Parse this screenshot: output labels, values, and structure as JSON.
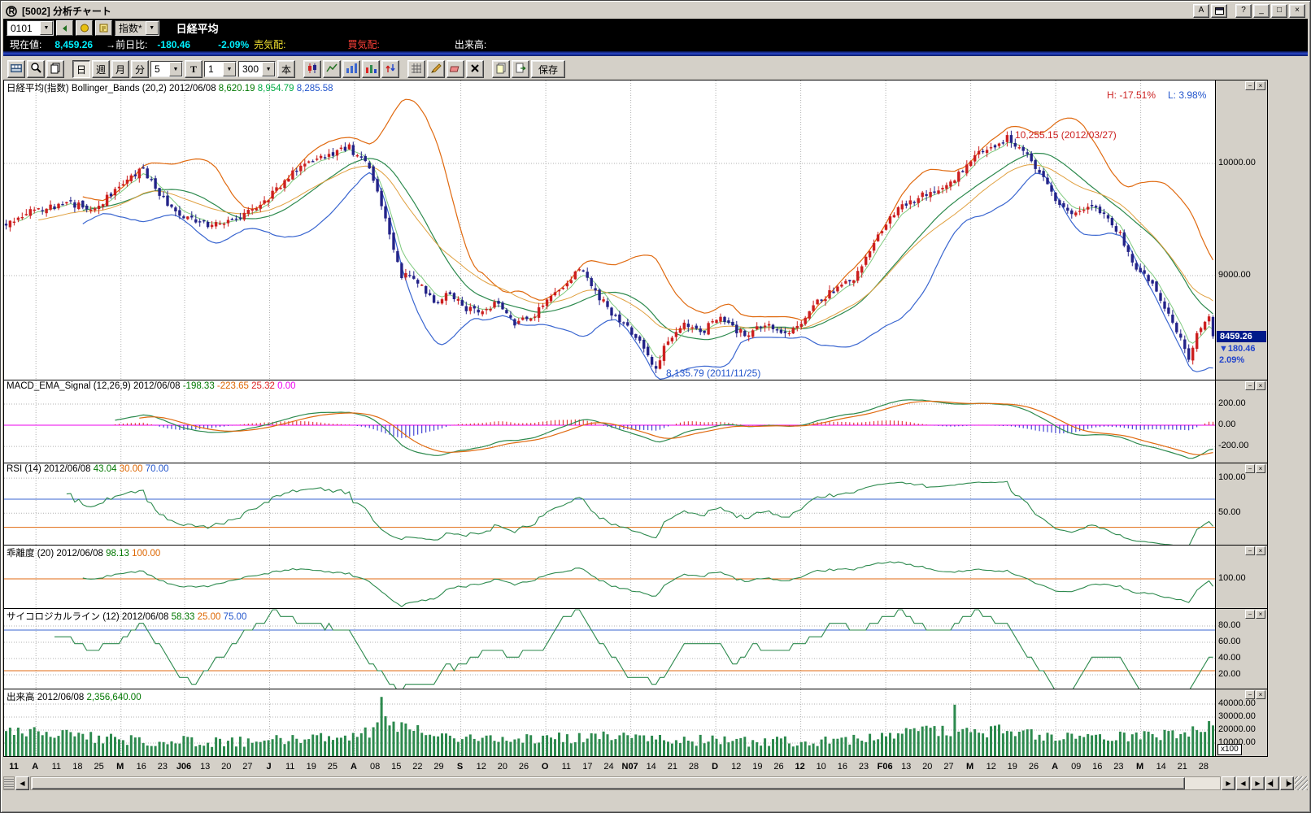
{
  "window": {
    "title": "[5002] 分析チャート",
    "buttons": {
      "a": "A",
      "help": "?",
      "minimize": "_",
      "restore": "□",
      "close": "×"
    }
  },
  "toolbar1": {
    "code": "0101",
    "type": "指数*",
    "instrument": "日経平均"
  },
  "quote": {
    "current_label": "現在値:",
    "current_value": "8,459.26",
    "change_label": "→前日比:",
    "change_value": "-180.46",
    "change_pct": "-2.09%",
    "ask_label": "売気配:",
    "bid_label": "買気配:",
    "volume_label": "出来高:"
  },
  "toolbar2": {
    "periods": [
      "日",
      "週",
      "月",
      "分"
    ],
    "active_period": "日",
    "minute_value": "5",
    "t_label": "T",
    "interval_value": "1",
    "bars_value": "300",
    "bars_unit": "本",
    "save_label": "保存"
  },
  "panel_controls": {
    "min": "−",
    "close": "×"
  },
  "scrollbar": {
    "left_arrow": "◀",
    "right_arrow": "▶",
    "nav_buttons": [
      "◀",
      "▶",
      "◀▏",
      "▕▶"
    ]
  },
  "chart_data": {
    "type": "candlestick",
    "title": "日経平均(指数)",
    "subtitle": "Bollinger_Bands (20,2)",
    "date": "2012/06/08",
    "bars": 300,
    "last_close": 8459.26,
    "indicators": {
      "bollinger": [
        20,
        2
      ],
      "macd": [
        12,
        26,
        9
      ],
      "rsi": 14,
      "kairi": 20,
      "psy": 12,
      "ema_fast": 5,
      "ema_mid": 25
    },
    "price_keypoints": [
      [
        0,
        9450
      ],
      [
        5,
        9560
      ],
      [
        15,
        9650
      ],
      [
        22,
        9600
      ],
      [
        28,
        9800
      ],
      [
        34,
        9950
      ],
      [
        40,
        9620
      ],
      [
        47,
        9480
      ],
      [
        54,
        9440
      ],
      [
        58,
        9540
      ],
      [
        65,
        9700
      ],
      [
        72,
        9950
      ],
      [
        80,
        10080
      ],
      [
        85,
        10140
      ],
      [
        90,
        9960
      ],
      [
        95,
        9360
      ],
      [
        98,
        9010
      ],
      [
        102,
        8950
      ],
      [
        106,
        8780
      ],
      [
        110,
        8830
      ],
      [
        114,
        8700
      ],
      [
        118,
        8660
      ],
      [
        122,
        8770
      ],
      [
        126,
        8580
      ],
      [
        130,
        8630
      ],
      [
        134,
        8760
      ],
      [
        138,
        8900
      ],
      [
        142,
        9060
      ],
      [
        146,
        8860
      ],
      [
        150,
        8660
      ],
      [
        154,
        8530
      ],
      [
        158,
        8360
      ],
      [
        161,
        8170
      ],
      [
        164,
        8430
      ],
      [
        168,
        8570
      ],
      [
        172,
        8480
      ],
      [
        176,
        8630
      ],
      [
        180,
        8530
      ],
      [
        184,
        8470
      ],
      [
        188,
        8570
      ],
      [
        192,
        8470
      ],
      [
        196,
        8560
      ],
      [
        200,
        8730
      ],
      [
        205,
        8870
      ],
      [
        210,
        8970
      ],
      [
        215,
        9310
      ],
      [
        220,
        9570
      ],
      [
        225,
        9670
      ],
      [
        230,
        9770
      ],
      [
        235,
        9870
      ],
      [
        240,
        10070
      ],
      [
        245,
        10170
      ],
      [
        248,
        10230
      ],
      [
        252,
        10110
      ],
      [
        256,
        9930
      ],
      [
        260,
        9670
      ],
      [
        264,
        9570
      ],
      [
        268,
        9630
      ],
      [
        272,
        9530
      ],
      [
        276,
        9370
      ],
      [
        280,
        9070
      ],
      [
        284,
        8900
      ],
      [
        288,
        8650
      ],
      [
        291,
        8450
      ],
      [
        293,
        8250
      ],
      [
        296,
        8560
      ],
      [
        298,
        8645
      ],
      [
        299,
        8459.26
      ]
    ],
    "vol_keypoints": [
      [
        0,
        19500
      ],
      [
        10,
        17500
      ],
      [
        20,
        14500
      ],
      [
        35,
        12000
      ],
      [
        50,
        11000
      ],
      [
        65,
        12000
      ],
      [
        80,
        14000
      ],
      [
        90,
        18000
      ],
      [
        93,
        28000
      ],
      [
        97,
        23000
      ],
      [
        105,
        17000
      ],
      [
        115,
        12500
      ],
      [
        130,
        13500
      ],
      [
        145,
        14500
      ],
      [
        160,
        14000
      ],
      [
        175,
        11500
      ],
      [
        190,
        10500
      ],
      [
        205,
        12000
      ],
      [
        218,
        15500
      ],
      [
        230,
        20000
      ],
      [
        240,
        17500
      ],
      [
        248,
        20500
      ],
      [
        256,
        16500
      ],
      [
        265,
        13000
      ],
      [
        275,
        14500
      ],
      [
        285,
        16500
      ],
      [
        293,
        19000
      ],
      [
        299,
        23566
      ]
    ],
    "vol_overrides": [
      [
        93,
        45500
      ],
      [
        235,
        39500
      ],
      [
        299,
        23566
      ]
    ],
    "labels": [
      "11",
      "A",
      "11",
      "18",
      "25",
      "M",
      "16",
      "23",
      "J06",
      "13",
      "20",
      "27",
      "J",
      "11",
      "19",
      "25",
      "A",
      "08",
      "15",
      "22",
      "29",
      "S",
      "12",
      "20",
      "26",
      "O",
      "11",
      "17",
      "24",
      "N07",
      "14",
      "21",
      "28",
      "D",
      "12",
      "19",
      "26",
      "12",
      "10",
      "16",
      "23",
      "F06",
      "13",
      "20",
      "27",
      "M",
      "12",
      "19",
      "26",
      "A",
      "09",
      "16",
      "23",
      "M",
      "14",
      "21",
      "28"
    ],
    "month_indices": [
      1,
      5,
      8,
      12,
      16,
      21,
      25,
      29,
      33,
      37,
      41,
      45,
      49,
      53
    ],
    "bold_indices": [
      0,
      1,
      5,
      8,
      12,
      16,
      21,
      25,
      29,
      33,
      37,
      41,
      45,
      49,
      53
    ],
    "panels_cfg": {
      "main": {
        "ylim": [
          8065,
          10739
        ],
        "ticks": [
          {
            "v": 10000,
            "t": "10000.00"
          },
          {
            "v": 9000,
            "t": "9000.00"
          }
        ]
      },
      "macd": {
        "ylim": [
          -361,
          423
        ],
        "ticks": [
          {
            "v": 200,
            "t": "200.00"
          },
          {
            "v": 0,
            "t": "0.00"
          },
          {
            "v": -200,
            "t": "-200.00"
          }
        ]
      },
      "rsi": {
        "ylim": [
          4,
          121
        ],
        "ticks": [
          {
            "v": 100,
            "t": "100.00"
          },
          {
            "v": 50,
            "t": "50.00"
          }
        ],
        "hlines": [
          {
            "v": 70,
            "c": "#3a66d0"
          },
          {
            "v": 30,
            "c": "#e06a10"
          }
        ]
      },
      "kairi": {
        "ylim": [
          90.75,
          110.25
        ],
        "ticks": [
          {
            "v": 100,
            "t": "100.00"
          }
        ],
        "hlines": [
          {
            "v": 100,
            "c": "#e06a10"
          }
        ]
      },
      "psy": {
        "ylim": [
          2,
          101
        ],
        "ticks": [
          {
            "v": 80,
            "t": "80.00"
          },
          {
            "v": 60,
            "t": "60.00"
          },
          {
            "v": 40,
            "t": "40.00"
          },
          {
            "v": 20,
            "t": "20.00"
          }
        ],
        "hlines": [
          {
            "v": 75,
            "c": "#3a66d0"
          },
          {
            "v": 25,
            "c": "#e06a10"
          }
        ]
      },
      "vol": {
        "ylim": [
          0,
          51250
        ],
        "ticks": [
          {
            "v": 40000,
            "t": "40000.00"
          },
          {
            "v": 30000,
            "t": "30000.00"
          },
          {
            "v": 20000,
            "t": "20000.00"
          },
          {
            "v": 10000,
            "t": "10000.00"
          }
        ],
        "unit": "x100"
      }
    },
    "headers": {
      "main": [
        {
          "t": "日経平均(指数) Bollinger_Bands (20,2) 2012/06/08 ",
          "c": "#000000"
        },
        {
          "t": "8,620.19 ",
          "c": "#007700"
        },
        {
          "t": "8,954.79 ",
          "c": "#00aa44"
        },
        {
          "t": "8,285.58",
          "c": "#2255cc"
        }
      ],
      "macd": [
        {
          "t": "MACD_EMA_Signal (12,26,9) 2012/06/08 ",
          "c": "#000000"
        },
        {
          "t": "-198.33 ",
          "c": "#007700"
        },
        {
          "t": "-223.65 ",
          "c": "#dd6600"
        },
        {
          "t": "25.32 ",
          "c": "#dd2222"
        },
        {
          "t": "0.00",
          "c": "#ee00ee"
        }
      ],
      "rsi": [
        {
          "t": "RSI (14) 2012/06/08 ",
          "c": "#000000"
        },
        {
          "t": "43.04 ",
          "c": "#007700"
        },
        {
          "t": "30.00 ",
          "c": "#dd6600"
        },
        {
          "t": "70.00",
          "c": "#2255cc"
        }
      ],
      "kairi": [
        {
          "t": "乖離度 (20) 2012/06/08 ",
          "c": "#000000"
        },
        {
          "t": "98.13 ",
          "c": "#007700"
        },
        {
          "t": "100.00",
          "c": "#dd6600"
        }
      ],
      "psy": [
        {
          "t": "サイコロジカルライン (12) 2012/06/08 ",
          "c": "#000000"
        },
        {
          "t": "58.33 ",
          "c": "#007700"
        },
        {
          "t": "25.00 ",
          "c": "#dd6600"
        },
        {
          "t": "75.00",
          "c": "#2255cc"
        }
      ],
      "vol": [
        {
          "t": "出来高 2012/06/08 ",
          "c": "#000000"
        },
        {
          "t": "2,356,640.00",
          "c": "#007700"
        }
      ]
    },
    "annotations": {
      "high_label": {
        "text": "H: -17.51%",
        "color": "#cc2222"
      },
      "low_label": {
        "text": "L: 3.98%",
        "color": "#2255cc"
      },
      "peak": {
        "text": "10,255.15 (2012/03/27)",
        "color": "#cc2222",
        "bar": 248,
        "price": 10255.15
      },
      "trough": {
        "text": "8,135.79 (2011/11/25)",
        "color": "#2255cc",
        "bar": 161,
        "price": 8135.79
      }
    },
    "price_axis": {
      "badge": "8459.26",
      "badge_bg": "#001a8a",
      "change": "▼180.46",
      "pct": "2.09%",
      "change_color": "#2244cc"
    },
    "colors": {
      "up": "#cc1f1f",
      "down": "#232388",
      "bb_upper": "#e06a10",
      "bb_lower": "#3a66d0",
      "bb_mid": "#2d8a4e",
      "ema_fast": "#7fca7f",
      "ema_mid": "#e0a040",
      "macd": "#2d8a4e",
      "signal": "#e06a10",
      "hist_pos": "#dd2222",
      "hist_neg": "#2222cc",
      "zero": "#ee00ee",
      "rsi": "#2d8a4e",
      "kairi": "#2d8a4e",
      "psy": "#2d8a4e",
      "vol": "#2d8a4e",
      "grid": "#b0b0b0"
    }
  }
}
